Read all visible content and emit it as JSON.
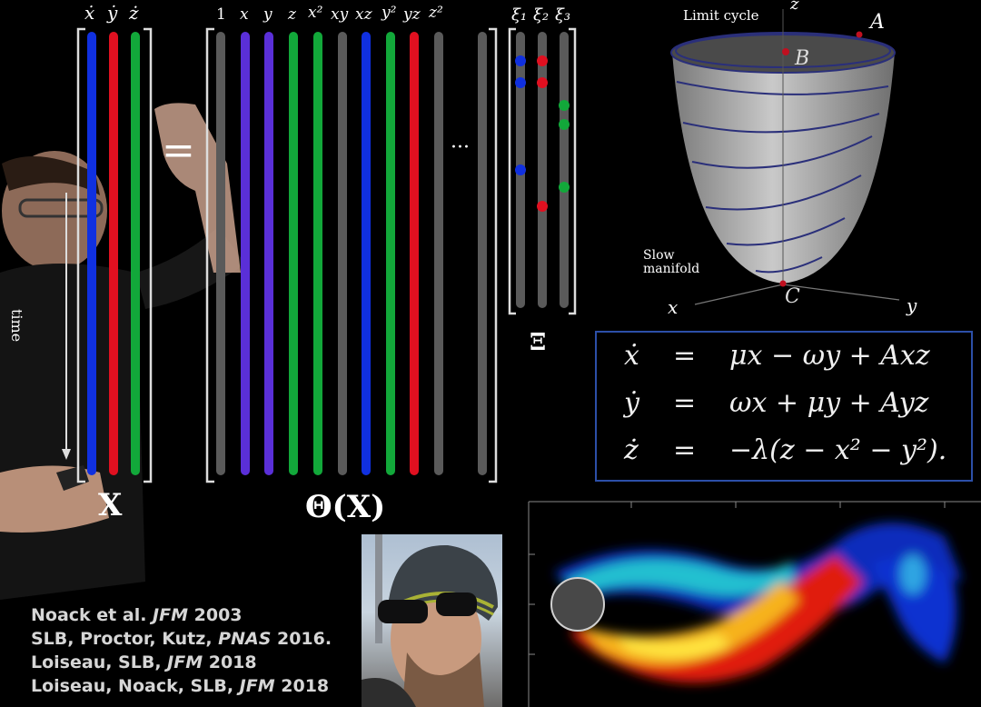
{
  "matrix_x": {
    "headers": [
      "ẋ",
      "ẏ",
      "ż"
    ],
    "symbol": "X",
    "time_label": "time"
  },
  "equals_sign": "=",
  "matrix_theta": {
    "headers": [
      "1",
      "x",
      "y",
      "z",
      "x²",
      "xy",
      "xz",
      "y²",
      "yz",
      "z²"
    ],
    "ellipsis": "···",
    "symbol": "Θ(X)"
  },
  "matrix_xi": {
    "headers": [
      "ξ₁",
      "ξ₂",
      "ξ₃"
    ],
    "symbol": "Ξ"
  },
  "manifold_plot": {
    "limit_cycle_label": "Limit cycle",
    "slow_manifold_label": "Slow manifold",
    "axis_labels": {
      "x": "x",
      "y": "y",
      "z": "z"
    },
    "points": {
      "A": "A",
      "B": "B",
      "C": "C"
    }
  },
  "equations": [
    {
      "lhs": "ẋ",
      "eq": "=",
      "rhs": "μx − ωy + Axz"
    },
    {
      "lhs": "ẏ",
      "eq": "=",
      "rhs": "ωx + μy + Ayz"
    },
    {
      "lhs": "ż",
      "eq": "=",
      "rhs": "−λ(z − x² − y²)."
    }
  ],
  "references": [
    {
      "text": "Noack et al. ",
      "journal": "JFM",
      "year": " 2003"
    },
    {
      "text": "SLB, Proctor, Kutz, ",
      "journal": "PNAS",
      "year": " 2016."
    },
    {
      "text": "Loiseau, SLB, ",
      "journal": "JFM",
      "year": " 2018"
    },
    {
      "text": "Loiseau, Noack, SLB, ",
      "journal": "JFM",
      "year": " 2018"
    }
  ],
  "colors": {
    "blue": "#1030e0",
    "red": "#e01020",
    "green": "#12a83a",
    "purple": "#5a2fd8",
    "gray": "#5a5a5a",
    "eq_border": "#2c4fa8"
  }
}
